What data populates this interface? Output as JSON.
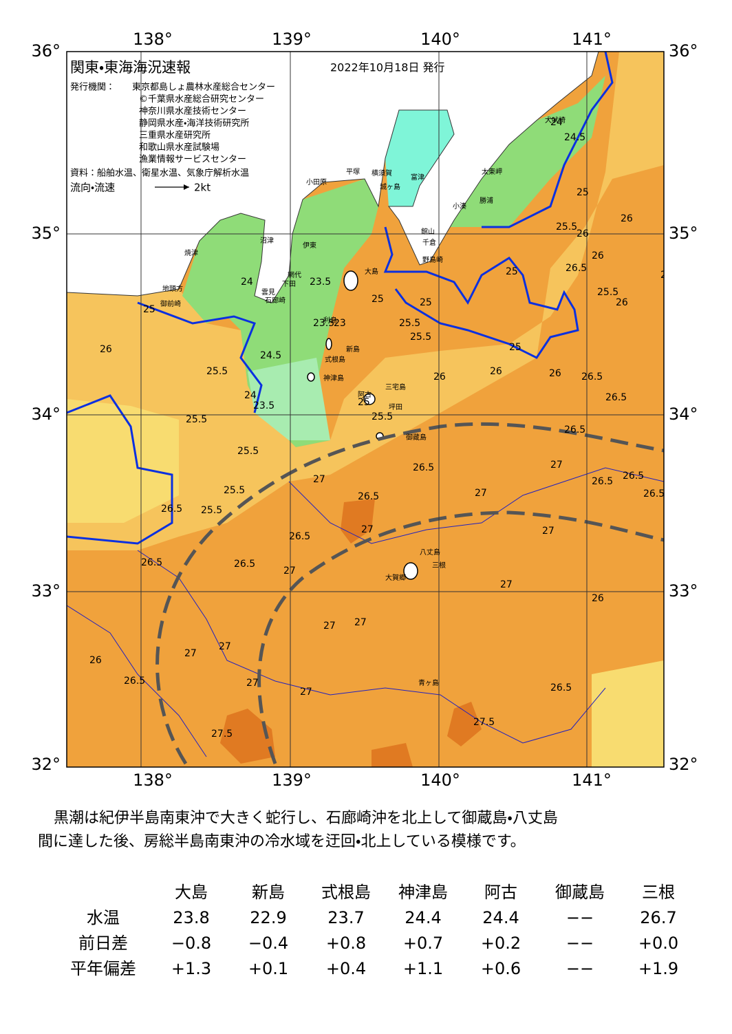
{
  "header": {
    "title": "関東・東海海況速報",
    "date": "2022年10月18日 発行",
    "issuer_label": "発行機関：",
    "issuers": [
      "東京都島しょ農林水産総合センター",
      "©千葉県水産総合研究センター",
      "神奈川県水産技術センター",
      "静岡県水産・海洋技術研究所",
      "三重県水産研究所",
      "和歌山県水産試験場",
      "漁業情報サービスセンター"
    ],
    "sources": "資料：船舶水温、衛星水温、気象庁解析水温",
    "legend_label": "流向・流速",
    "legend_speed": "2kt"
  },
  "map": {
    "lon_labels": [
      "138°",
      "139°",
      "140°",
      "141°"
    ],
    "lat_labels": [
      "36°",
      "35°",
      "34°",
      "33°",
      "32°"
    ],
    "places": [
      "大島",
      "新島",
      "式根島",
      "神津島",
      "阿古",
      "三宅島",
      "坪田",
      "御蔵島",
      "八丈島",
      "三根",
      "大賀郷",
      "青ヶ島",
      "小田原",
      "平塚",
      "横須賀",
      "城ヶ島",
      "富津",
      "館山",
      "千倉",
      "野島崎",
      "小湊",
      "勝浦",
      "太東岬",
      "犬吠埼",
      "沼津",
      "伊東",
      "焼津",
      "網代",
      "下田",
      "雲見",
      "石廊崎",
      "地頭方",
      "御前崎",
      "利島"
    ],
    "contour_labels": [
      "24",
      "24.5",
      "25",
      "25.5",
      "26",
      "26",
      "26",
      "25.5",
      "26.5",
      "26",
      "25",
      "25",
      "25.5",
      "25.5",
      "25",
      "26",
      "26",
      "26",
      "26.5",
      "26.5",
      "25",
      "26",
      "25",
      "23.5",
      "23",
      "23.5",
      "24",
      "24.5",
      "25.5",
      "25",
      "26",
      "25.5",
      "25.5",
      "25.5",
      "25.5",
      "25.5",
      "24",
      "23.5",
      "26.5",
      "26.5",
      "26.5",
      "26.5",
      "26.5",
      "26.5",
      "27",
      "27",
      "27",
      "27",
      "27",
      "27",
      "27",
      "27",
      "27",
      "27",
      "27",
      "27",
      "27.5",
      "27.5",
      "26.5",
      "26.5",
      "26.5",
      "26",
      "26",
      "27",
      "26.5",
      "26.5",
      "26.5"
    ]
  },
  "description": [
    "黒潮は紀伊半島南東沖で大きく蛇行し、石廊崎沖を北上して御蔵島・八丈島",
    "間に達した後、房総半島南東沖の冷水域を迂回・北上している模様です。"
  ],
  "table": {
    "columns": [
      "大島",
      "新島",
      "式根島",
      "神津島",
      "阿古",
      "御蔵島",
      "三根"
    ],
    "rows": [
      {
        "label": "水温",
        "values": [
          "23.8",
          "22.9",
          "23.7",
          "24.4",
          "24.4",
          "−−",
          "26.7"
        ]
      },
      {
        "label": "前日差",
        "values": [
          "−0.8",
          "−0.4",
          "+0.8",
          "+0.7",
          "+0.2",
          "−−",
          "+0.0"
        ]
      },
      {
        "label": "平年偏差",
        "values": [
          "+1.3",
          "+0.1",
          "+0.4",
          "+1.1",
          "+0.6",
          "−−",
          "+1.9"
        ]
      }
    ]
  }
}
